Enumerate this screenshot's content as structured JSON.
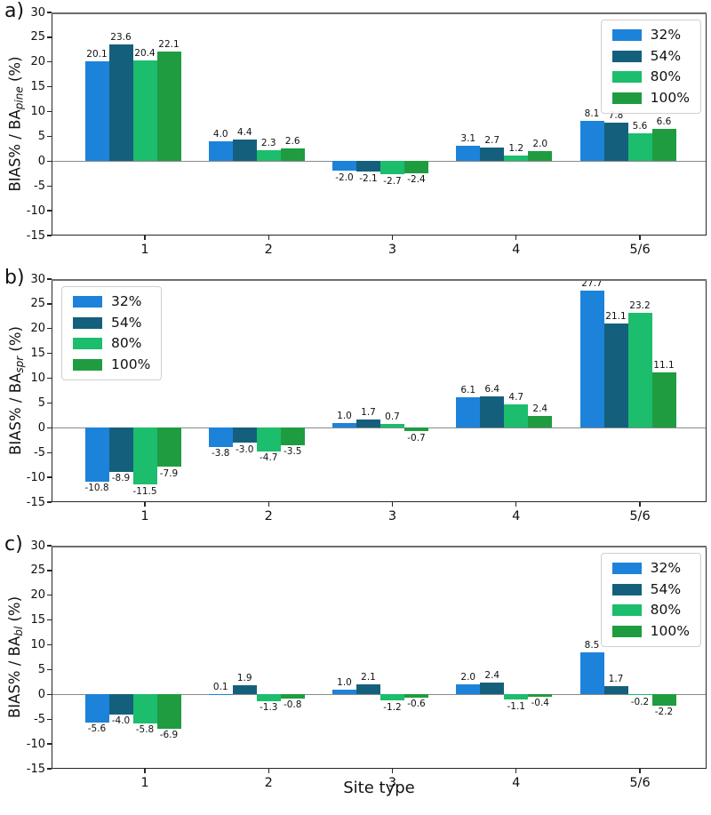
{
  "figure": {
    "xlabel": "Site type",
    "legend_labels": [
      "32%",
      "54%",
      "80%",
      "100%"
    ],
    "colors": [
      "#1d82d9",
      "#14607c",
      "#1cbd6c",
      "#1f9c40"
    ],
    "zero_line_color": "#8a8a8a",
    "top_spine_color": "#6d6d6d"
  },
  "chart_data": [
    {
      "type": "bar",
      "panel_label": "a)",
      "ylabel_prefix": "BIAS% / BA",
      "ylabel_sub": "pine",
      "ylabel_suffix": " (%)",
      "xlabel": "",
      "categories": [
        "1",
        "2",
        "3",
        "4",
        "5/6"
      ],
      "series": [
        {
          "name": "32%",
          "values": [
            20.1,
            4.0,
            -2.0,
            3.1,
            8.1
          ]
        },
        {
          "name": "54%",
          "values": [
            23.6,
            4.4,
            -2.1,
            2.7,
            7.8
          ]
        },
        {
          "name": "80%",
          "values": [
            20.4,
            2.3,
            -2.7,
            1.2,
            5.6
          ]
        },
        {
          "name": "100%",
          "values": [
            22.1,
            2.6,
            -2.4,
            2.0,
            6.6
          ]
        }
      ],
      "ylim": [
        -15,
        30
      ],
      "ytick_step": 5,
      "grid": false,
      "legend_position": "top-right"
    },
    {
      "type": "bar",
      "panel_label": "b)",
      "ylabel_prefix": "BIAS% / BA",
      "ylabel_sub": "spr",
      "ylabel_suffix": " (%)",
      "xlabel": "",
      "categories": [
        "1",
        "2",
        "3",
        "4",
        "5/6"
      ],
      "series": [
        {
          "name": "32%",
          "values": [
            -10.8,
            -3.8,
            1.0,
            6.1,
            27.7
          ]
        },
        {
          "name": "54%",
          "values": [
            -8.9,
            -3.0,
            1.7,
            6.4,
            21.1
          ]
        },
        {
          "name": "80%",
          "values": [
            -11.5,
            -4.7,
            0.7,
            4.7,
            23.2
          ]
        },
        {
          "name": "100%",
          "values": [
            -7.9,
            -3.5,
            -0.7,
            2.4,
            11.1
          ]
        }
      ],
      "ylim": [
        -15,
        30
      ],
      "ytick_step": 5,
      "grid": false,
      "legend_position": "top-left"
    },
    {
      "type": "bar",
      "panel_label": "c)",
      "ylabel_prefix": "BIAS% / BA",
      "ylabel_sub": "bl",
      "ylabel_suffix": " (%)",
      "xlabel": "Site type",
      "categories": [
        "1",
        "2",
        "3",
        "4",
        "5/6"
      ],
      "series": [
        {
          "name": "32%",
          "values": [
            -5.6,
            0.1,
            1.0,
            2.0,
            8.5
          ]
        },
        {
          "name": "54%",
          "values": [
            -4.0,
            1.9,
            2.1,
            2.4,
            1.7
          ]
        },
        {
          "name": "80%",
          "values": [
            -5.8,
            -1.3,
            -1.2,
            -1.1,
            -0.2
          ]
        },
        {
          "name": "100%",
          "values": [
            -6.9,
            -0.8,
            -0.6,
            -0.4,
            -2.2
          ]
        }
      ],
      "ylim": [
        -15,
        30
      ],
      "ytick_step": 5,
      "grid": false,
      "legend_position": "top-right"
    }
  ]
}
